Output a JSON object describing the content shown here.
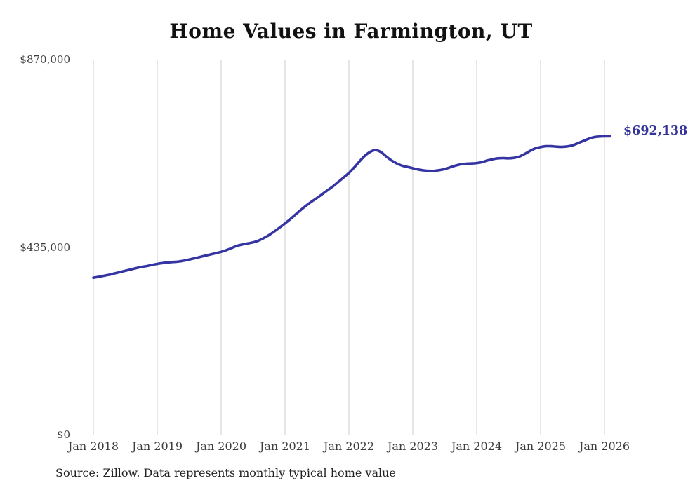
{
  "chart": {
    "colors": {
      "line": "#3434a3",
      "end_label": "#333399",
      "grid": "#cccccc",
      "title": "#111111",
      "axis_text": "#3d3d3d",
      "source_text": "#222222",
      "background": "#ffffff"
    }
  },
  "chart_data": {
    "type": "line",
    "title": "Home Values in Farmington, UT",
    "xlabel": "",
    "ylabel": "",
    "ylim": [
      0,
      870000
    ],
    "grid": "vertical-only",
    "legend": "none",
    "x_start": "Jan 2018",
    "x_end": "Feb 2026",
    "x_interval": "monthly",
    "x_tick_labels": [
      "Jan 2018",
      "Jan 2019",
      "Jan 2020",
      "Jan 2021",
      "Jan 2022",
      "Jan 2023",
      "Jan 2024",
      "Jan 2025",
      "Jan 2026"
    ],
    "y_tick_labels": [
      {
        "label": "$0",
        "value": 0
      },
      {
        "label": "$435,000",
        "value": 435000
      },
      {
        "label": "$870,000",
        "value": 870000
      }
    ],
    "series": [
      {
        "name": "Monthly typical home value",
        "values": [
          364000,
          366000,
          368500,
          371000,
          374000,
          377000,
          380000,
          383000,
          386000,
          389000,
          391000,
          393500,
          396000,
          398000,
          399500,
          400500,
          401500,
          403500,
          406000,
          409000,
          412000,
          415000,
          418000,
          421000,
          424000,
          428000,
          433000,
          438000,
          441000,
          443500,
          446000,
          450000,
          456000,
          463000,
          471500,
          480500,
          490000,
          500000,
          511000,
          521500,
          531500,
          540500,
          549000,
          558000,
          567000,
          576000,
          586000,
          596500,
          607000,
          620000,
          634000,
          647000,
          656000,
          660000,
          655500,
          645500,
          636000,
          629000,
          624000,
          621000,
          618000,
          615000,
          613000,
          612000,
          612000,
          613500,
          616000,
          620000,
          624000,
          627000,
          628500,
          629000,
          630000,
          632000,
          636000,
          639000,
          641000,
          641500,
          641000,
          642000,
          645000,
          651000,
          658000,
          664000,
          667000,
          669000,
          669000,
          668000,
          667500,
          668500,
          671000,
          676000,
          681000,
          686000,
          690000,
          691500,
          692000,
          692138
        ]
      }
    ],
    "last_value": 692138,
    "annotation": "$692,138",
    "source": "Source: Zillow. Data represents monthly typical home value"
  }
}
